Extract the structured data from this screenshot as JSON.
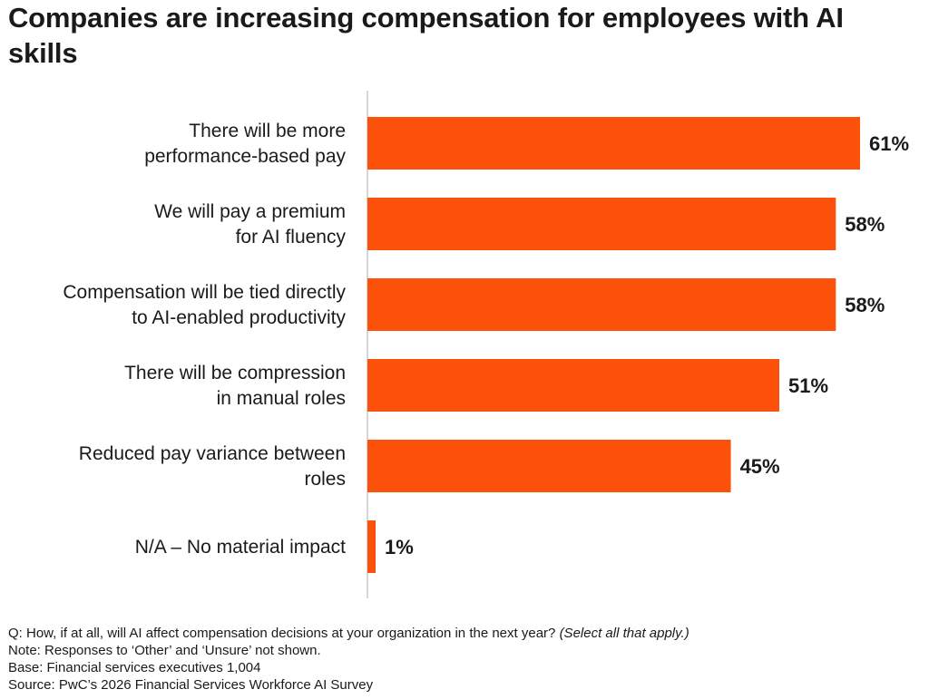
{
  "title": "Companies are increasing compensation for employees with AI skills",
  "colors": {
    "bar": "#fb510a",
    "axis": "#d6d6d6",
    "text": "#1a1a1a"
  },
  "chart_data": {
    "type": "bar",
    "orientation": "horizontal",
    "categories": [
      [
        "There will be more",
        "performance-based pay"
      ],
      [
        "We will pay a premium",
        "for AI fluency"
      ],
      [
        "Compensation will be tied directly",
        "to AI-enabled productivity"
      ],
      [
        "There will be compression",
        "in manual roles"
      ],
      [
        "Reduced pay variance between",
        "roles"
      ],
      [
        "N/A – No material impact"
      ]
    ],
    "values": [
      61,
      58,
      58,
      51,
      45,
      1
    ],
    "value_labels": [
      "61%",
      "58%",
      "58%",
      "51%",
      "45%",
      "1%"
    ],
    "unit": "%",
    "grid": false,
    "legend": "none"
  },
  "footnotes": {
    "question": "Q: How, if at all, will AI affect compensation decisions at your organization in the next year?",
    "question_note": "(Select all that apply.)",
    "note": "Note: Responses to ‘Other’ and ‘Unsure’ not shown.",
    "base": "Base: Financial services executives 1,004",
    "source": "Source: PwC’s 2026 Financial Services Workforce AI Survey"
  }
}
